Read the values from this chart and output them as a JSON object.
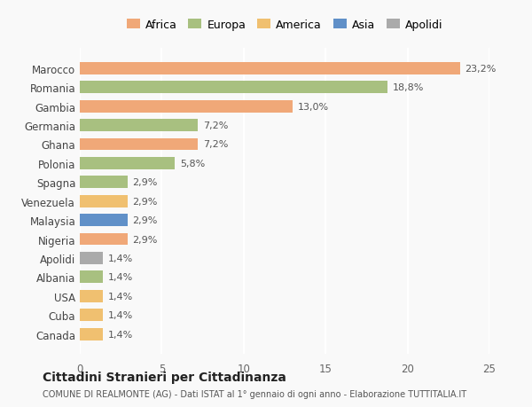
{
  "categories": [
    "Canada",
    "Cuba",
    "USA",
    "Albania",
    "Apolidi",
    "Nigeria",
    "Malaysia",
    "Venezuela",
    "Spagna",
    "Polonia",
    "Ghana",
    "Germania",
    "Gambia",
    "Romania",
    "Marocco"
  ],
  "values": [
    1.4,
    1.4,
    1.4,
    1.4,
    1.4,
    2.9,
    2.9,
    2.9,
    2.9,
    5.8,
    7.2,
    7.2,
    13.0,
    18.8,
    23.2
  ],
  "colors": [
    "#f0c070",
    "#f0c070",
    "#f0c070",
    "#a8c080",
    "#aaaaaa",
    "#f0a878",
    "#6090c8",
    "#f0c070",
    "#a8c080",
    "#a8c080",
    "#f0a878",
    "#a8c080",
    "#f0a878",
    "#a8c080",
    "#f0a878"
  ],
  "labels": [
    "1,4%",
    "1,4%",
    "1,4%",
    "1,4%",
    "1,4%",
    "2,9%",
    "2,9%",
    "2,9%",
    "2,9%",
    "5,8%",
    "7,2%",
    "7,2%",
    "13,0%",
    "18,8%",
    "23,2%"
  ],
  "legend_labels": [
    "Africa",
    "Europa",
    "America",
    "Asia",
    "Apolidi"
  ],
  "legend_colors": [
    "#f0a878",
    "#a8c080",
    "#f0c070",
    "#6090c8",
    "#aaaaaa"
  ],
  "title": "Cittadini Stranieri per Cittadinanza",
  "subtitle": "COMUNE DI REALMONTE (AG) - Dati ISTAT al 1° gennaio di ogni anno - Elaborazione TUTTITALIA.IT",
  "xlim": [
    0,
    25
  ],
  "xticks": [
    0,
    5,
    10,
    15,
    20,
    25
  ],
  "bg_color": "#f9f9f9",
  "bar_bg_color": "#ffffff"
}
